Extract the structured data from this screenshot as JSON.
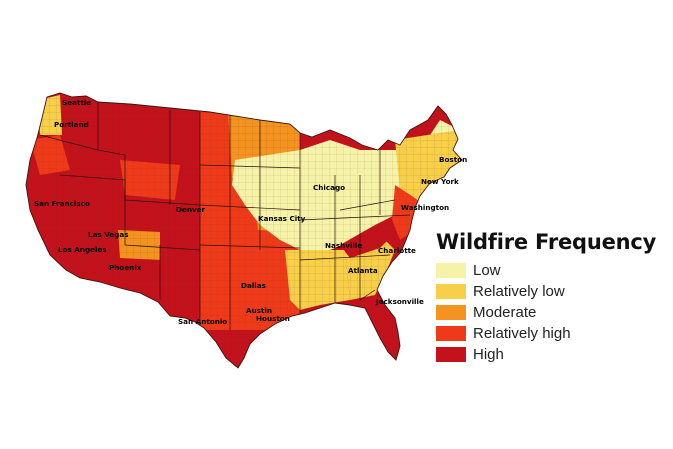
{
  "legend": {
    "title": "Wildfire Frequency",
    "items": [
      {
        "label": "Low",
        "color": "#f6f3a8"
      },
      {
        "label": "Relatively low",
        "color": "#f7cf49"
      },
      {
        "label": "Moderate",
        "color": "#f4931f"
      },
      {
        "label": "Relatively high",
        "color": "#ef3a1a"
      },
      {
        "label": "High",
        "color": "#c4121c"
      }
    ]
  },
  "cities": {
    "seattle": "Seattle",
    "portland": "Portland",
    "san_francisco": "San Francisco",
    "las_vegas": "Las Vegas",
    "los_angeles": "Los Angeles",
    "phoenix": "Phoenix",
    "denver": "Denver",
    "kansas_city": "Kansas City",
    "chicago": "Chicago",
    "dallas": "Dallas",
    "austin": "Austin",
    "san_antonio": "San Antonio",
    "houston": "Houston",
    "nashville": "Nashville",
    "atlanta": "Atlanta",
    "charlotte": "Charlotte",
    "jacksonville": "Jacksonville",
    "washington": "Washington",
    "new_york": "New York",
    "boston": "Boston"
  }
}
